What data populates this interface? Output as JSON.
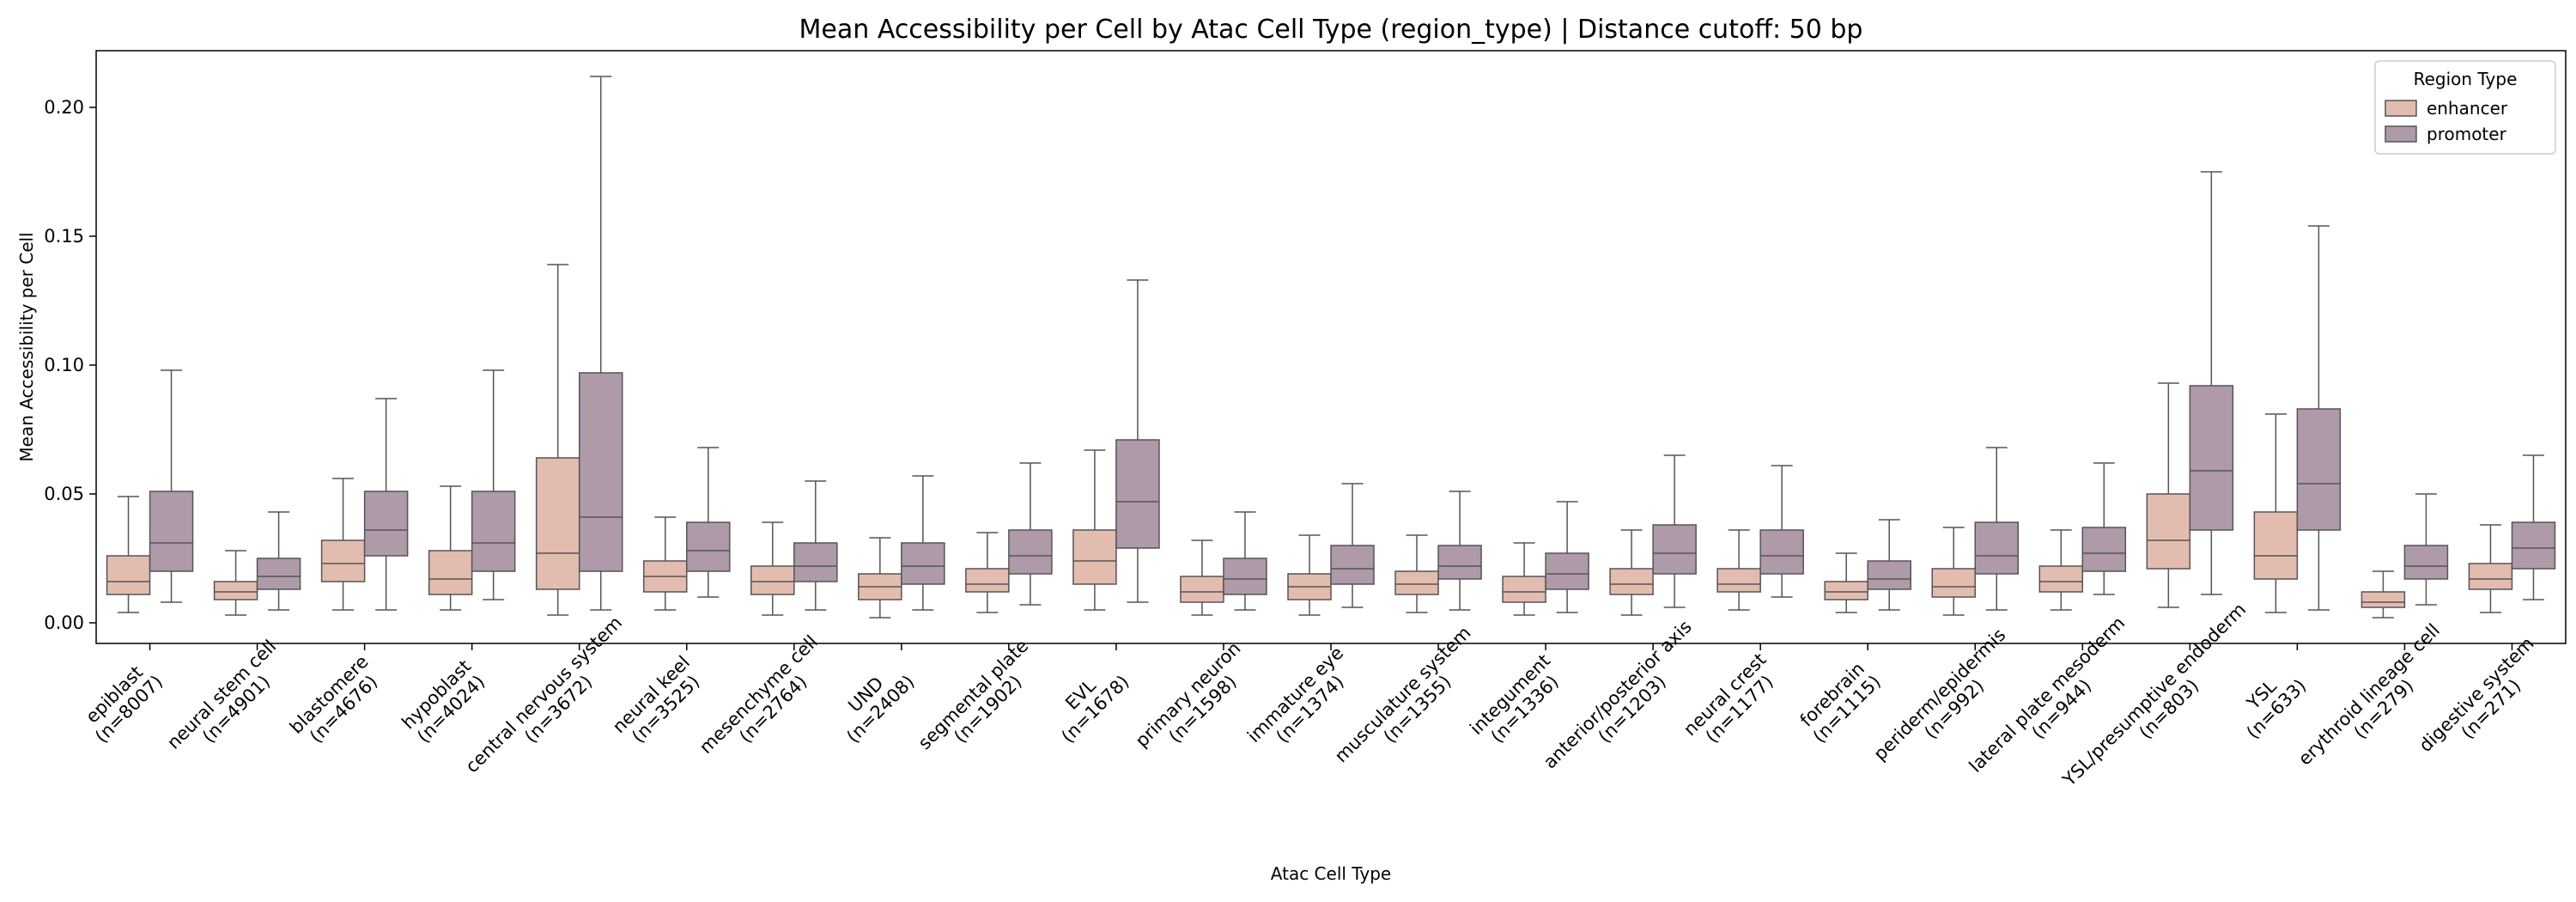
{
  "chart_data": {
    "type": "box",
    "title": "Mean Accessibility per Cell by Atac Cell Type (region_type) | Distance cutoff: 50 bp",
    "xlabel": "Atac Cell Type",
    "ylabel": "Mean Accessibility per Cell",
    "ylim": [
      -0.008,
      0.222
    ],
    "yticks": [
      "0.00",
      "0.05",
      "0.10",
      "0.15",
      "0.20"
    ],
    "categories": [
      "epiblast\n(n=8007)",
      "neural stem cell\n(n=4901)",
      "blastomere\n(n=4676)",
      "hypoblast\n(n=4024)",
      "central nervous system\n(n=3672)",
      "neural keel\n(n=3525)",
      "mesenchyme cell\n(n=2764)",
      "UND\n(n=2408)",
      "segmental plate\n(n=1902)",
      "EVL\n(n=1678)",
      "primary neuron\n(n=1598)",
      "immature eye\n(n=1374)",
      "musculature system\n(n=1355)",
      "integument\n(n=1336)",
      "anterior/posterior axis\n(n=1203)",
      "neural crest\n(n=1177)",
      "forebrain\n(n=1115)",
      "periderm/epidermis\n(n=992)",
      "lateral plate mesoderm\n(n=944)",
      "YSL/presumptive endoderm\n(n=803)",
      "YSL\n(n=633)",
      "erythroid lineage cell\n(n=279)",
      "digestive system\n(n=271)"
    ],
    "legend": {
      "title": "Region Type",
      "placement": "top-right"
    },
    "grid": false,
    "series": [
      {
        "name": "enhancer",
        "color": "#e3bcb0",
        "boxes": [
          {
            "whislo": 0.004,
            "q1": 0.011,
            "med": 0.016,
            "q3": 0.026,
            "whishi": 0.049
          },
          {
            "whislo": 0.003,
            "q1": 0.009,
            "med": 0.012,
            "q3": 0.016,
            "whishi": 0.028
          },
          {
            "whislo": 0.005,
            "q1": 0.016,
            "med": 0.023,
            "q3": 0.032,
            "whishi": 0.056
          },
          {
            "whislo": 0.005,
            "q1": 0.011,
            "med": 0.017,
            "q3": 0.028,
            "whishi": 0.053
          },
          {
            "whislo": 0.003,
            "q1": 0.013,
            "med": 0.027,
            "q3": 0.064,
            "whishi": 0.139
          },
          {
            "whislo": 0.005,
            "q1": 0.012,
            "med": 0.018,
            "q3": 0.024,
            "whishi": 0.041
          },
          {
            "whislo": 0.003,
            "q1": 0.011,
            "med": 0.016,
            "q3": 0.022,
            "whishi": 0.039
          },
          {
            "whislo": 0.002,
            "q1": 0.009,
            "med": 0.014,
            "q3": 0.019,
            "whishi": 0.033
          },
          {
            "whislo": 0.004,
            "q1": 0.012,
            "med": 0.015,
            "q3": 0.021,
            "whishi": 0.035
          },
          {
            "whislo": 0.005,
            "q1": 0.015,
            "med": 0.024,
            "q3": 0.036,
            "whishi": 0.067
          },
          {
            "whislo": 0.003,
            "q1": 0.008,
            "med": 0.012,
            "q3": 0.018,
            "whishi": 0.032
          },
          {
            "whislo": 0.003,
            "q1": 0.009,
            "med": 0.014,
            "q3": 0.019,
            "whishi": 0.034
          },
          {
            "whislo": 0.004,
            "q1": 0.011,
            "med": 0.015,
            "q3": 0.02,
            "whishi": 0.034
          },
          {
            "whislo": 0.003,
            "q1": 0.008,
            "med": 0.012,
            "q3": 0.018,
            "whishi": 0.031
          },
          {
            "whislo": 0.003,
            "q1": 0.011,
            "med": 0.015,
            "q3": 0.021,
            "whishi": 0.036
          },
          {
            "whislo": 0.005,
            "q1": 0.012,
            "med": 0.015,
            "q3": 0.021,
            "whishi": 0.036
          },
          {
            "whislo": 0.004,
            "q1": 0.009,
            "med": 0.012,
            "q3": 0.016,
            "whishi": 0.027
          },
          {
            "whislo": 0.003,
            "q1": 0.01,
            "med": 0.014,
            "q3": 0.021,
            "whishi": 0.037
          },
          {
            "whislo": 0.005,
            "q1": 0.012,
            "med": 0.016,
            "q3": 0.022,
            "whishi": 0.036
          },
          {
            "whislo": 0.006,
            "q1": 0.021,
            "med": 0.032,
            "q3": 0.05,
            "whishi": 0.093
          },
          {
            "whislo": 0.004,
            "q1": 0.017,
            "med": 0.026,
            "q3": 0.043,
            "whishi": 0.081
          },
          {
            "whislo": 0.002,
            "q1": 0.006,
            "med": 0.008,
            "q3": 0.012,
            "whishi": 0.02
          },
          {
            "whislo": 0.004,
            "q1": 0.013,
            "med": 0.017,
            "q3": 0.023,
            "whishi": 0.038
          }
        ]
      },
      {
        "name": "promoter",
        "color": "#ae9aa8",
        "boxes": [
          {
            "whislo": 0.008,
            "q1": 0.02,
            "med": 0.031,
            "q3": 0.051,
            "whishi": 0.098
          },
          {
            "whislo": 0.005,
            "q1": 0.013,
            "med": 0.018,
            "q3": 0.025,
            "whishi": 0.043
          },
          {
            "whislo": 0.005,
            "q1": 0.026,
            "med": 0.036,
            "q3": 0.051,
            "whishi": 0.087
          },
          {
            "whislo": 0.009,
            "q1": 0.02,
            "med": 0.031,
            "q3": 0.051,
            "whishi": 0.098
          },
          {
            "whislo": 0.005,
            "q1": 0.02,
            "med": 0.041,
            "q3": 0.097,
            "whishi": 0.212
          },
          {
            "whislo": 0.01,
            "q1": 0.02,
            "med": 0.028,
            "q3": 0.039,
            "whishi": 0.068
          },
          {
            "whislo": 0.005,
            "q1": 0.016,
            "med": 0.022,
            "q3": 0.031,
            "whishi": 0.055
          },
          {
            "whislo": 0.005,
            "q1": 0.015,
            "med": 0.022,
            "q3": 0.031,
            "whishi": 0.057
          },
          {
            "whislo": 0.007,
            "q1": 0.019,
            "med": 0.026,
            "q3": 0.036,
            "whishi": 0.062
          },
          {
            "whislo": 0.008,
            "q1": 0.029,
            "med": 0.047,
            "q3": 0.071,
            "whishi": 0.133
          },
          {
            "whislo": 0.005,
            "q1": 0.011,
            "med": 0.017,
            "q3": 0.025,
            "whishi": 0.043
          },
          {
            "whislo": 0.006,
            "q1": 0.015,
            "med": 0.021,
            "q3": 0.03,
            "whishi": 0.054
          },
          {
            "whislo": 0.005,
            "q1": 0.017,
            "med": 0.022,
            "q3": 0.03,
            "whishi": 0.051
          },
          {
            "whislo": 0.004,
            "q1": 0.013,
            "med": 0.019,
            "q3": 0.027,
            "whishi": 0.047
          },
          {
            "whislo": 0.006,
            "q1": 0.019,
            "med": 0.027,
            "q3": 0.038,
            "whishi": 0.065
          },
          {
            "whislo": 0.01,
            "q1": 0.019,
            "med": 0.026,
            "q3": 0.036,
            "whishi": 0.061
          },
          {
            "whislo": 0.005,
            "q1": 0.013,
            "med": 0.017,
            "q3": 0.024,
            "whishi": 0.04
          },
          {
            "whislo": 0.005,
            "q1": 0.019,
            "med": 0.026,
            "q3": 0.039,
            "whishi": 0.068
          },
          {
            "whislo": 0.011,
            "q1": 0.02,
            "med": 0.027,
            "q3": 0.037,
            "whishi": 0.062
          },
          {
            "whislo": 0.011,
            "q1": 0.036,
            "med": 0.059,
            "q3": 0.092,
            "whishi": 0.175
          },
          {
            "whislo": 0.005,
            "q1": 0.036,
            "med": 0.054,
            "q3": 0.083,
            "whishi": 0.154
          },
          {
            "whislo": 0.007,
            "q1": 0.017,
            "med": 0.022,
            "q3": 0.03,
            "whishi": 0.05
          },
          {
            "whislo": 0.009,
            "q1": 0.021,
            "med": 0.029,
            "q3": 0.039,
            "whishi": 0.065
          }
        ]
      }
    ]
  }
}
